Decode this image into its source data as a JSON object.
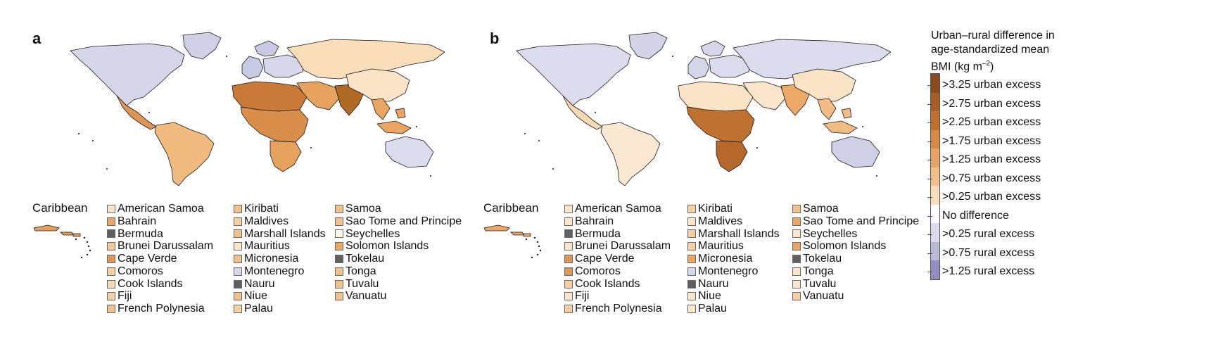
{
  "panels": [
    {
      "label": "a",
      "caribbean_label": "Caribbean",
      "regions": {
        "north_america": "#d6d6ea",
        "greenland": "#cfd0e6",
        "central_america": "#df9654",
        "south_america": "#f1bb7f",
        "europe_west": "#c8c9e2",
        "europe_east": "#d8d8ec",
        "russia_central_asia": "#faddb9",
        "middle_east": "#e7a35e",
        "north_africa": "#ca7a38",
        "sub_saharan_africa": "#d98e49",
        "southern_africa": "#e7a35e",
        "south_asia": "#b06a24",
        "china_east_asia": "#fbe3c6",
        "southeast_asia": "#e9a561",
        "maritime_se_asia": "#e9a561",
        "australia": "#dcdcee",
        "caribbean": "#e3a058"
      },
      "columns": [
        [
          {
            "name": "American Samoa",
            "color": "#fbe6cc"
          },
          {
            "name": "Bahrain",
            "color": "#e9a561"
          },
          {
            "name": "Bermuda",
            "color": "#5f5f5f"
          },
          {
            "name": "Brunei Darussalam",
            "color": "#f4c996"
          },
          {
            "name": "Cape Verde",
            "color": "#df9654"
          },
          {
            "name": "Comoros",
            "color": "#f6d0a3"
          },
          {
            "name": "Cook Islands",
            "color": "#f8d9b2"
          },
          {
            "name": "Fiji",
            "color": "#f6d0a3"
          },
          {
            "name": "French Polynesia",
            "color": "#f2c08b"
          }
        ],
        [
          {
            "name": "Kiribati",
            "color": "#f2c08b"
          },
          {
            "name": "Maldives",
            "color": "#f6d0a3"
          },
          {
            "name": "Marshall Islands",
            "color": "#f2c08b"
          },
          {
            "name": "Mauritius",
            "color": "#fbe6cc"
          },
          {
            "name": "Micronesia",
            "color": "#f2c08b"
          },
          {
            "name": "Montenegro",
            "color": "#d8d8ec"
          },
          {
            "name": "Nauru",
            "color": "#5f5f5f"
          },
          {
            "name": "Niue",
            "color": "#f2c08b"
          },
          {
            "name": "Palau",
            "color": "#f6d0a3"
          }
        ],
        [
          {
            "name": "Samoa",
            "color": "#f2c08b"
          },
          {
            "name": "Sao Tome and Principe",
            "color": "#f2c08b"
          },
          {
            "name": "Seychelles",
            "color": "#fef6ec"
          },
          {
            "name": "Solomon Islands",
            "color": "#e9a561"
          },
          {
            "name": "Tokelau",
            "color": "#5f5f5f"
          },
          {
            "name": "Tonga",
            "color": "#f2c08b"
          },
          {
            "name": "Tuvalu",
            "color": "#f2c08b"
          },
          {
            "name": "Vanuatu",
            "color": "#f2c08b"
          }
        ]
      ]
    },
    {
      "label": "b",
      "caribbean_label": "Caribbean",
      "regions": {
        "north_america": "#dcdcee",
        "greenland": "#d4d4e9",
        "central_america": "#f8d9b2",
        "south_america": "#fbe8d2",
        "europe_west": "#d6d6ea",
        "europe_east": "#dcdcee",
        "russia_central_asia": "#dcdcee",
        "middle_east": "#fbe6cc",
        "north_africa": "#fbe3c6",
        "sub_saharan_africa": "#bf7230",
        "southern_africa": "#b8672a",
        "south_asia": "#eca967",
        "china_east_asia": "#fbe3c6",
        "southeast_asia": "#f2bd85",
        "maritime_se_asia": "#f2bd85",
        "australia": "#cfd0e6",
        "caribbean": "#eba868"
      },
      "columns": [
        [
          {
            "name": "American Samoa",
            "color": "#fbe6cc"
          },
          {
            "name": "Bahrain",
            "color": "#fbe6cc"
          },
          {
            "name": "Bermuda",
            "color": "#5f5f5f"
          },
          {
            "name": "Brunei Darussalam",
            "color": "#fbe6cc"
          },
          {
            "name": "Cape Verde",
            "color": "#df9654"
          },
          {
            "name": "Comoros",
            "color": "#df9654"
          },
          {
            "name": "Cook Islands",
            "color": "#f6d0a3"
          },
          {
            "name": "Fiji",
            "color": "#fbe6cc"
          },
          {
            "name": "French Polynesia",
            "color": "#f6d0a3"
          }
        ],
        [
          {
            "name": "Kiribati",
            "color": "#f6d0a3"
          },
          {
            "name": "Maldives",
            "color": "#fbe6cc"
          },
          {
            "name": "Marshall Islands",
            "color": "#f6d0a3"
          },
          {
            "name": "Mauritius",
            "color": "#f6d0a3"
          },
          {
            "name": "Micronesia",
            "color": "#e9a561"
          },
          {
            "name": "Montenegro",
            "color": "#d8d8ec"
          },
          {
            "name": "Nauru",
            "color": "#5f5f5f"
          },
          {
            "name": "Niue",
            "color": "#fbe6cc"
          },
          {
            "name": "Palau",
            "color": "#fbe6cc"
          }
        ],
        [
          {
            "name": "Samoa",
            "color": "#f2c08b"
          },
          {
            "name": "Sao Tome and Principe",
            "color": "#e9a561"
          },
          {
            "name": "Seychelles",
            "color": "#fbe6cc"
          },
          {
            "name": "Solomon Islands",
            "color": "#e9a561"
          },
          {
            "name": "Tokelau",
            "color": "#5f5f5f"
          },
          {
            "name": "Tonga",
            "color": "#fbe6cc"
          },
          {
            "name": "Tuvalu",
            "color": "#fbe6cc"
          },
          {
            "name": "Vanuatu",
            "color": "#f6d0a3"
          }
        ]
      ]
    }
  ],
  "legend": {
    "title_line1": "Urban–rural difference in",
    "title_line2": "age-standardized mean",
    "title_line3_pre": "BMI (kg m",
    "title_line3_sup": "–2",
    "title_line3_post": ")",
    "bins": [
      {
        "label": ">3.25 urban excess",
        "color": "#8c4a1c"
      },
      {
        "label": ">2.75 urban excess",
        "color": "#a85d24"
      },
      {
        "label": ">2.25 urban excess",
        "color": "#c26f2d"
      },
      {
        "label": ">1.75 urban excess",
        "color": "#d88a45"
      },
      {
        "label": ">1.25 urban excess",
        "color": "#e8a464"
      },
      {
        "label": ">0.75 urban excess",
        "color": "#f2bf8b"
      },
      {
        "label": ">0.25 urban excess",
        "color": "#f9dcba"
      },
      {
        "label": "No difference",
        "color": "#ffffff"
      },
      {
        "label": ">0.25 rural excess",
        "color": "#dcdcee"
      },
      {
        "label": ">0.75 rural excess",
        "color": "#b9b9da"
      },
      {
        "label": ">1.25 rural excess",
        "color": "#8f8fc2"
      }
    ]
  }
}
